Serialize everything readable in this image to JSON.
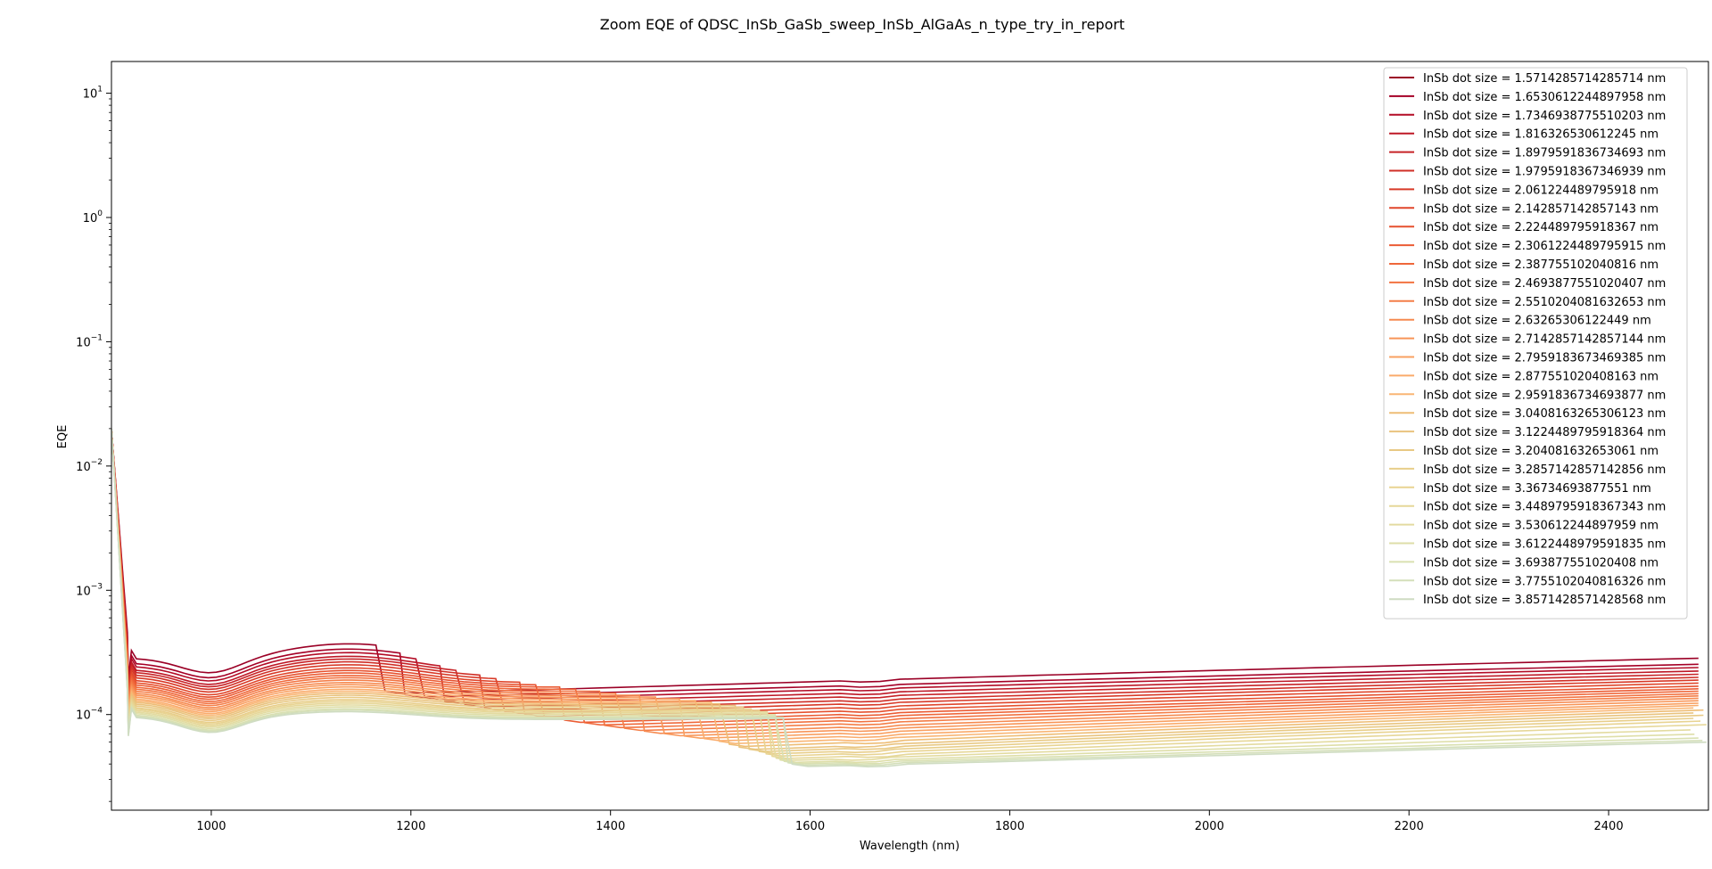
{
  "chart_data": {
    "type": "line",
    "title": "Zoom EQE of QDSC_InSb_GaSb_sweep_InSb_AlGaAs_n_type_try_in_report",
    "xlabel": "Wavelength (nm)",
    "ylabel": "EQE",
    "xlim": [
      900,
      2500
    ],
    "ylim": [
      1.7e-05,
      18
    ],
    "yscale": "log",
    "x_ticks": [
      1000,
      1200,
      1400,
      1600,
      1800,
      2000,
      2200,
      2400
    ],
    "y_ticks": [
      {
        "base": "10",
        "exp": "−4",
        "value": 0.0001
      },
      {
        "base": "10",
        "exp": "−3",
        "value": 0.001
      },
      {
        "base": "10",
        "exp": "−2",
        "value": 0.01
      },
      {
        "base": "10",
        "exp": "−1",
        "value": 0.1
      },
      {
        "base": "10",
        "exp": "0",
        "value": 1
      },
      {
        "base": "10",
        "exp": "1",
        "value": 10
      }
    ],
    "grid": false,
    "legend_position": "top-right",
    "colormap_note": "YlOrRd reversed",
    "series": [
      {
        "name": "InSb dot size = 1.5714285714285714 nm",
        "color": "#9b0026",
        "edge": 1170,
        "level_lo": 0.000285,
        "level_hi": 0.000148,
        "end": 0.000285
      },
      {
        "name": "InSb dot size = 1.6530612244897958 nm",
        "color": "#a50026",
        "edge": 1190,
        "level_lo": 0.00026,
        "level_hi": 0.000138,
        "end": 0.000255
      },
      {
        "name": "InSb dot size = 1.7346938775510203 nm",
        "color": "#b30c26",
        "edge": 1210,
        "level_lo": 0.000245,
        "level_hi": 0.00013,
        "end": 0.00024
      },
      {
        "name": "InSb dot size = 1.816326530612245 nm",
        "color": "#be1826",
        "edge": 1230,
        "level_lo": 0.00023,
        "level_hi": 0.000122,
        "end": 0.000225
      },
      {
        "name": "InSb dot size = 1.8979591836734693 nm",
        "color": "#c72327",
        "edge": 1250,
        "level_lo": 0.00022,
        "level_hi": 0.000115,
        "end": 0.000212
      },
      {
        "name": "InSb dot size = 1.9795918367346939 nm",
        "color": "#d02f27",
        "edge": 1270,
        "level_lo": 0.00021,
        "level_hi": 0.000108,
        "end": 0.0002
      },
      {
        "name": "InSb dot size = 2.061224489795918 nm",
        "color": "#d83a28",
        "edge": 1290,
        "level_lo": 0.0002,
        "level_hi": 0.000102,
        "end": 0.00019
      },
      {
        "name": "InSb dot size = 2.142857142857143 nm",
        "color": "#e0462b",
        "edge": 1310,
        "level_lo": 0.00019,
        "level_hi": 9.6e-05,
        "end": 0.00018
      },
      {
        "name": "InSb dot size = 2.224489795918367 nm",
        "color": "#e6512f",
        "edge": 1330,
        "level_lo": 0.000182,
        "level_hi": 9.1e-05,
        "end": 0.00017
      },
      {
        "name": "InSb dot size = 2.3061224489795915 nm",
        "color": "#eb5c34",
        "edge": 1350,
        "level_lo": 0.000175,
        "level_hi": 8.6e-05,
        "end": 0.000162
      },
      {
        "name": "InSb dot size = 2.387755102040816 nm",
        "color": "#ef673a",
        "edge": 1370,
        "level_lo": 0.000168,
        "level_hi": 8.2e-05,
        "end": 0.000155
      },
      {
        "name": "InSb dot size = 2.4693877551020407 nm",
        "color": "#f27341",
        "edge": 1390,
        "level_lo": 0.000162,
        "level_hi": 7.8e-05,
        "end": 0.000148
      },
      {
        "name": "InSb dot size = 2.5510204081632653 nm",
        "color": "#f47e48",
        "edge": 1410,
        "level_lo": 0.000156,
        "level_hi": 7.4e-05,
        "end": 0.000142
      },
      {
        "name": "InSb dot size = 2.63265306122449 nm",
        "color": "#f68a50",
        "edge": 1430,
        "level_lo": 0.00015,
        "level_hi": 7e-05,
        "end": 0.000136
      },
      {
        "name": "InSb dot size = 2.7142857142857144 nm",
        "color": "#f89558",
        "edge": 1450,
        "level_lo": 0.000145,
        "level_hi": 6.7e-05,
        "end": 0.00013
      },
      {
        "name": "InSb dot size = 2.7959183673469385 nm",
        "color": "#f9a061",
        "edge": 1470,
        "level_lo": 0.00014,
        "level_hi": 6.4e-05,
        "end": 0.000124
      },
      {
        "name": "InSb dot size = 2.877551020408163 nm",
        "color": "#faab6b",
        "edge": 1490,
        "level_lo": 0.000135,
        "level_hi": 6.1e-05,
        "end": 0.000119
      },
      {
        "name": "InSb dot size = 2.9591836734693877 nm",
        "color": "#f9b675",
        "edge": 1505,
        "level_lo": 0.000131,
        "level_hi": 5.8e-05,
        "end": 0.000114
      },
      {
        "name": "InSb dot size = 3.0408163265306123 nm",
        "color": "#eebd76",
        "edge": 1515,
        "level_lo": 0.000127,
        "level_hi": 5.5e-05,
        "end": 0.000109
      },
      {
        "name": "InSb dot size = 3.1224489795918364 nm",
        "color": "#e9c37e",
        "edge": 1525,
        "level_lo": 0.000123,
        "level_hi": 5.2e-05,
        "end": 0.000104
      },
      {
        "name": "InSb dot size = 3.204081632653061 nm",
        "color": "#e8c984",
        "edge": 1535,
        "level_lo": 0.000119,
        "level_hi": 5e-05,
        "end": 9.9e-05
      },
      {
        "name": "InSb dot size = 3.2857142857142856 nm",
        "color": "#e8ce8a",
        "edge": 1545,
        "level_lo": 0.000115,
        "level_hi": 4.8e-05,
        "end": 9.4e-05
      },
      {
        "name": "InSb dot size = 3.36734693877551 nm",
        "color": "#e8d391",
        "edge": 1552,
        "level_lo": 0.000112,
        "level_hi": 4.6e-05,
        "end": 8.9e-05
      },
      {
        "name": "InSb dot size = 3.4489795918367343 nm",
        "color": "#e6d798",
        "edge": 1558,
        "level_lo": 0.000109,
        "level_hi": 4.4e-05,
        "end": 8.3e-05
      },
      {
        "name": "InSb dot size = 3.530612244897959 nm",
        "color": "#e3dba0",
        "edge": 1562,
        "level_lo": 0.000106,
        "level_hi": 4.25e-05,
        "end": 7.6e-05
      },
      {
        "name": "InSb dot size = 3.6122448979591835 nm",
        "color": "#dedea8",
        "edge": 1566,
        "level_lo": 0.000103,
        "level_hi": 4.1e-05,
        "end": 7e-05
      },
      {
        "name": "InSb dot size = 3.693877551020408 nm",
        "color": "#d9e0b1",
        "edge": 1570,
        "level_lo": 0.0001,
        "level_hi": 4e-05,
        "end": 6.5e-05
      },
      {
        "name": "InSb dot size = 3.7755102040816326 nm",
        "color": "#d4dfba",
        "edge": 1574,
        "level_lo": 9.8e-05,
        "level_hi": 3.9e-05,
        "end": 6.2e-05
      },
      {
        "name": "InSb dot size = 3.8571428571428568 nm",
        "color": "#cfdcc2",
        "edge": 1578,
        "level_lo": 9.6e-05,
        "level_hi": 3.8e-05,
        "end": 6e-05
      }
    ]
  }
}
